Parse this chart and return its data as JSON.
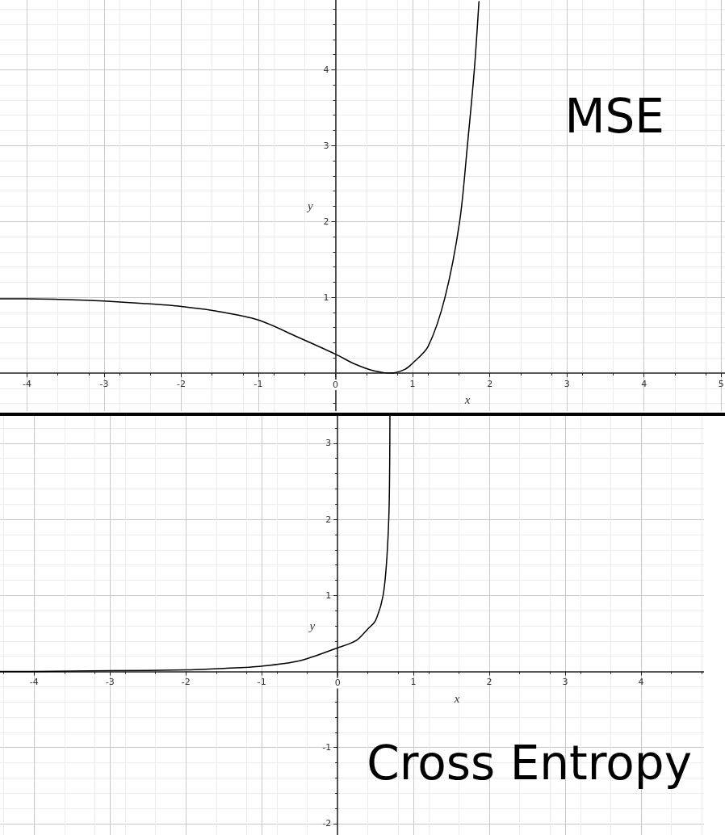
{
  "chart_data": [
    {
      "type": "line",
      "title": "MSE",
      "xlabel": "x",
      "ylabel": "y",
      "xlim": [
        -4.35,
        5.05
      ],
      "ylim": [
        -0.5,
        4.92
      ],
      "xticks": [
        -4,
        -3,
        -2,
        -1,
        0,
        1,
        2,
        3,
        4,
        5
      ],
      "yticks": [
        1,
        2,
        3,
        4
      ],
      "grid": true,
      "marker": "none",
      "line_style": "solid",
      "series": [
        {
          "color": "#000000",
          "x": [
            -4.35,
            -4,
            -3.5,
            -3,
            -2.5,
            -2,
            -1.5,
            -1,
            -0.5,
            0,
            0.25,
            0.5,
            0.72,
            0.9,
            1,
            1.2,
            1.42,
            1.61,
            1.71,
            1.8,
            1.86
          ],
          "values": [
            0.98,
            0.98,
            0.97,
            0.95,
            0.92,
            0.88,
            0.81,
            0.7,
            0.48,
            0.25,
            0.12,
            0.03,
            0,
            0.05,
            0.13,
            0.35,
            1,
            2,
            3,
            4,
            4.9
          ]
        }
      ]
    },
    {
      "type": "line",
      "title": "Cross Entropy",
      "xlabel": "x",
      "ylabel": "y",
      "xlim": [
        -4.45,
        4.83
      ],
      "ylim": [
        -2.15,
        3.36
      ],
      "xticks": [
        -4,
        -3,
        -2,
        -1,
        0,
        1,
        2,
        3,
        4
      ],
      "yticks": [
        -2,
        -1,
        1,
        2,
        3
      ],
      "grid": true,
      "marker": "none",
      "line_style": "solid",
      "series": [
        {
          "color": "#000000",
          "x": [
            -4.45,
            -4,
            -3,
            -2,
            -1.5,
            -1,
            -0.5,
            0,
            0.25,
            0.4,
            0.5,
            0.6,
            0.65,
            0.68,
            0.69
          ],
          "values": [
            0,
            0,
            0.01,
            0.02,
            0.04,
            0.07,
            0.14,
            0.31,
            0.41,
            0.56,
            0.67,
            1,
            1.5,
            2.2,
            3.36
          ]
        }
      ]
    }
  ]
}
